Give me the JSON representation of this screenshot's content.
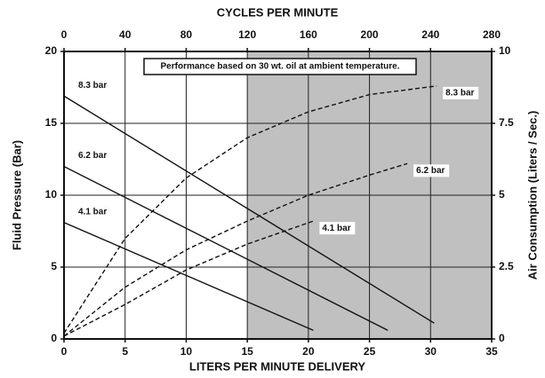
{
  "chart_data": {
    "type": "line",
    "x_label": "LITERS PER MINUTE DELIVERY",
    "x2_label": "CYCLES PER MINUTE",
    "y_label": "Fluid Pressure (Bar)",
    "y2_label": "Air Consumption (Liters / Sec.)",
    "note": "Performance based on 30 wt. oil at ambient temperature.",
    "xlim": [
      0,
      35
    ],
    "xticks": [
      0,
      5,
      10,
      15,
      20,
      25,
      30,
      35
    ],
    "x2lim": [
      0,
      280
    ],
    "x2ticks": [
      0,
      40,
      80,
      120,
      160,
      200,
      240,
      280
    ],
    "ylim": [
      0,
      20
    ],
    "yticks": [
      0,
      5,
      10,
      15,
      20
    ],
    "y2lim": [
      0,
      10
    ],
    "y2ticks": [
      0,
      2.5,
      5,
      7.5,
      10
    ],
    "shaded_xlim": [
      15,
      35
    ],
    "shade_color": "#c0c0c0",
    "grid": true,
    "series": [
      {
        "name": "8.3 bar",
        "color": "#111111",
        "dash": false,
        "x": [
          0,
          30.3
        ],
        "values": [
          16.9,
          1.1
        ]
      },
      {
        "name": "6.2 bar",
        "color": "#111111",
        "dash": false,
        "x": [
          0,
          26.5
        ],
        "values": [
          12,
          0.6
        ]
      },
      {
        "name": "4.1 bar",
        "color": "#111111",
        "dash": false,
        "x": [
          0,
          20.4
        ],
        "values": [
          8.1,
          0.6
        ]
      },
      {
        "name": "8.3 bar",
        "color": "#111111",
        "dash": true,
        "axis": "y2",
        "x": [
          0,
          5,
          10,
          15,
          20,
          25,
          30.5
        ],
        "values": [
          0.2,
          3.5,
          5.6,
          7,
          7.9,
          8.5,
          8.8
        ]
      },
      {
        "name": "6.2 bar",
        "color": "#111111",
        "dash": true,
        "axis": "y2",
        "x": [
          0,
          5,
          10,
          15,
          20,
          25,
          28.1
        ],
        "values": [
          0.1,
          1.8,
          3.1,
          4.1,
          5,
          5.7,
          6.1
        ]
      },
      {
        "name": "4.1 bar",
        "color": "#111111",
        "dash": true,
        "axis": "y2",
        "x": [
          0,
          5,
          10,
          15,
          20.4
        ],
        "values": [
          0.1,
          1.2,
          2.4,
          3.3,
          4.1
        ]
      }
    ]
  }
}
